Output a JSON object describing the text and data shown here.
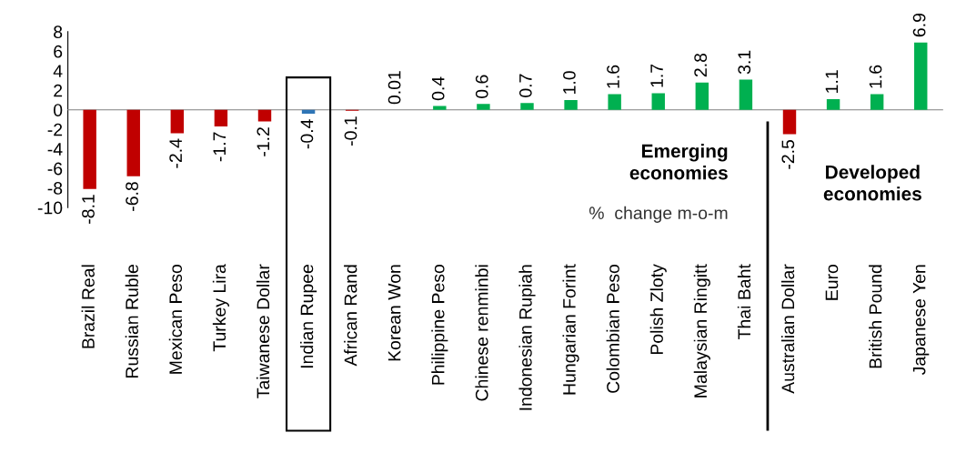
{
  "chart_data": {
    "type": "bar",
    "categories": [
      "Brazil Real",
      "Russian Ruble",
      "Mexican Peso",
      "Turkey Lira",
      "Taiwanese Dollar",
      "Indian Rupee",
      "African Rand",
      "Korean Won",
      "Philippine Peso",
      "Chinese renminbi",
      "Indonesian Rupiah",
      "Hungarian Forint",
      "Colombian Peso",
      "Polish Zloty",
      "Malaysian Ringitt",
      "Thai Baht",
      "Australian Dollar",
      "Euro",
      "British Pound",
      "Japanese Yen"
    ],
    "values": [
      -8.1,
      -6.8,
      -2.4,
      -1.7,
      -1.2,
      -0.4,
      -0.1,
      0.01,
      0.4,
      0.6,
      0.7,
      1.0,
      1.6,
      1.7,
      2.8,
      3.1,
      -2.5,
      1.1,
      1.6,
      6.9
    ],
    "value_labels": [
      "-8.1",
      "-6.8",
      "-2.4",
      "-1.7",
      "-1.2",
      "-0.4",
      "-0.1",
      "0.01",
      "0.4",
      "0.6",
      "0.7",
      "1.0",
      "1.6",
      "1.7",
      "2.8",
      "3.1",
      "-2.5",
      "1.1",
      "1.6",
      "6.9"
    ],
    "colors": [
      "#c00000",
      "#c00000",
      "#c00000",
      "#c00000",
      "#c00000",
      "#2e75b6",
      "#c00000",
      "#00b050",
      "#00b050",
      "#00b050",
      "#00b050",
      "#00b050",
      "#00b050",
      "#00b050",
      "#00b050",
      "#00b050",
      "#c00000",
      "#00b050",
      "#00b050",
      "#00b050"
    ],
    "ylim": [
      -10,
      8
    ],
    "yticks": [
      -10,
      -8,
      -6,
      -4,
      -2,
      0,
      2,
      4,
      6,
      8
    ],
    "annotations": [
      "Emerging\neconomies",
      "%  change m-o-m",
      "Developed\neconomies"
    ]
  }
}
